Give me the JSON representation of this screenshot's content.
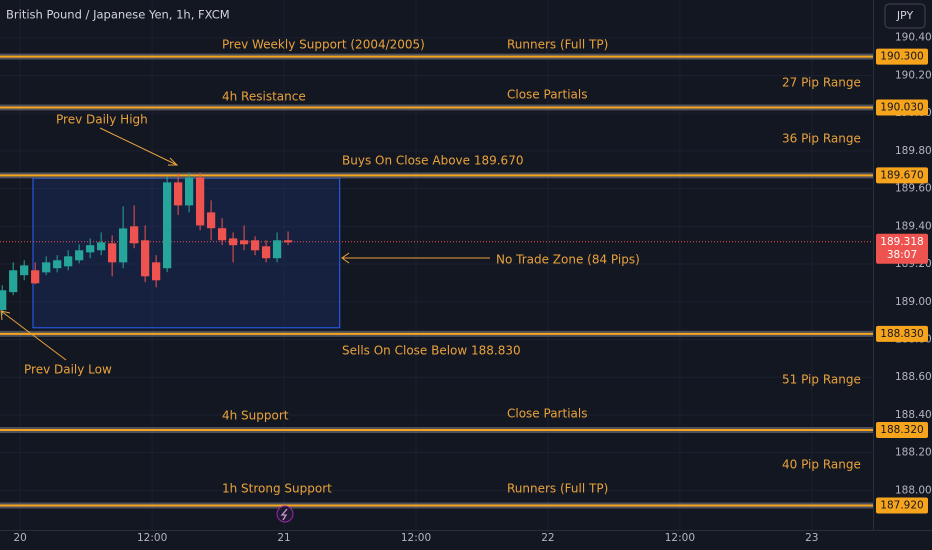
{
  "chart_data": {
    "type": "candlestick",
    "title": "British Pound / Japanese Yen, 1h, FXCM",
    "currency": "JPY",
    "up_color": "#26a69a",
    "down_color": "#ef5350",
    "level_color": "#f7a41d",
    "x": [
      0,
      1,
      2,
      3,
      4,
      5,
      6,
      7,
      8,
      9,
      10,
      11,
      12,
      13,
      14,
      15,
      16,
      17,
      18,
      19,
      20,
      21,
      22,
      23,
      24,
      25,
      26
    ],
    "open": [
      188.956,
      189.051,
      189.141,
      189.167,
      189.156,
      189.178,
      189.188,
      189.22,
      189.262,
      189.273,
      189.31,
      189.209,
      189.4,
      189.326,
      189.209,
      189.178,
      189.633,
      189.511,
      189.659,
      189.474,
      189.39,
      189.336,
      189.326,
      189.326,
      189.294,
      189.231,
      189.326
    ],
    "high": [
      189.088,
      189.209,
      189.22,
      189.209,
      189.241,
      189.247,
      189.273,
      189.305,
      189.336,
      189.368,
      189.352,
      189.506,
      189.511,
      189.405,
      189.247,
      189.664,
      189.68,
      189.685,
      189.685,
      189.538,
      189.443,
      189.368,
      189.405,
      189.347,
      189.326,
      189.368,
      189.373
    ],
    "low": [
      188.929,
      189.035,
      189.114,
      189.093,
      189.141,
      189.156,
      189.167,
      189.204,
      189.231,
      189.247,
      189.135,
      189.178,
      189.284,
      189.104,
      189.077,
      189.157,
      189.46,
      189.474,
      189.379,
      189.326,
      189.3,
      189.209,
      189.273,
      189.247,
      189.209,
      189.209,
      189.3
    ],
    "close": [
      189.061,
      189.167,
      189.193,
      189.098,
      189.209,
      189.22,
      189.241,
      189.273,
      189.3,
      189.315,
      189.209,
      189.389,
      189.31,
      189.135,
      189.114,
      189.633,
      189.511,
      189.659,
      189.405,
      189.39,
      189.326,
      189.3,
      189.305,
      189.273,
      189.231,
      189.326,
      189.315
    ],
    "xlim": [
      -0.2,
      79.2
    ],
    "xticks": [
      {
        "value": 1.636,
        "label": "20"
      },
      {
        "value": 13.636,
        "label": "12:00"
      },
      {
        "value": 25.636,
        "label": "21"
      },
      {
        "value": 37.636,
        "label": "12:00"
      },
      {
        "value": 49.636,
        "label": "22"
      },
      {
        "value": 61.636,
        "label": "12:00"
      },
      {
        "value": 73.636,
        "label": "23"
      }
    ],
    "ylim": [
      187.79,
      190.6
    ],
    "yticks": [
      {
        "value": 190.4,
        "label": "190.400"
      },
      {
        "value": 190.2,
        "label": "190.200"
      },
      {
        "value": 190.0,
        "label": "190.000"
      },
      {
        "value": 189.8,
        "label": "189.800"
      },
      {
        "value": 189.6,
        "label": "189.600"
      },
      {
        "value": 189.4,
        "label": "189.400"
      },
      {
        "value": 189.2,
        "label": "189.200"
      },
      {
        "value": 189.0,
        "label": "189.000"
      },
      {
        "value": 188.8,
        "label": "188.800"
      },
      {
        "value": 188.6,
        "label": "188.600"
      },
      {
        "value": 188.4,
        "label": "188.400"
      },
      {
        "value": 188.2,
        "label": "188.200"
      },
      {
        "value": 188.0,
        "label": "188.000"
      }
    ],
    "levels": [
      {
        "value": 190.3,
        "label": "190.300"
      },
      {
        "value": 190.03,
        "label": "190.030"
      },
      {
        "value": 189.67,
        "label": "189.670"
      },
      {
        "value": 188.83,
        "label": "188.830"
      },
      {
        "value": 188.32,
        "label": "188.320"
      },
      {
        "value": 187.92,
        "label": "187.920"
      }
    ],
    "last_price": {
      "value": 189.318,
      "label": "189.318",
      "countdown": "38:07"
    },
    "zone": {
      "x": [
        2.8,
        30.7
      ],
      "price": [
        189.655,
        188.862
      ]
    },
    "annotations": [
      "Prev Weekly Support (2004/2005)",
      "Runners (Full TP)",
      "27 Pip Range",
      "4h Resistance",
      "Close Partials",
      "Prev Daily High",
      "36 Pip Range",
      "Buys On Close Above 189.670",
      "No Trade Zone (84 Pips)",
      "Prev Daily Low",
      "Sells On Close Below 188.830",
      "51 Pip Range",
      "4h Support",
      "Close Partials",
      "40 Pip Range",
      "1h Strong Support",
      "Runners (Full TP)"
    ]
  }
}
